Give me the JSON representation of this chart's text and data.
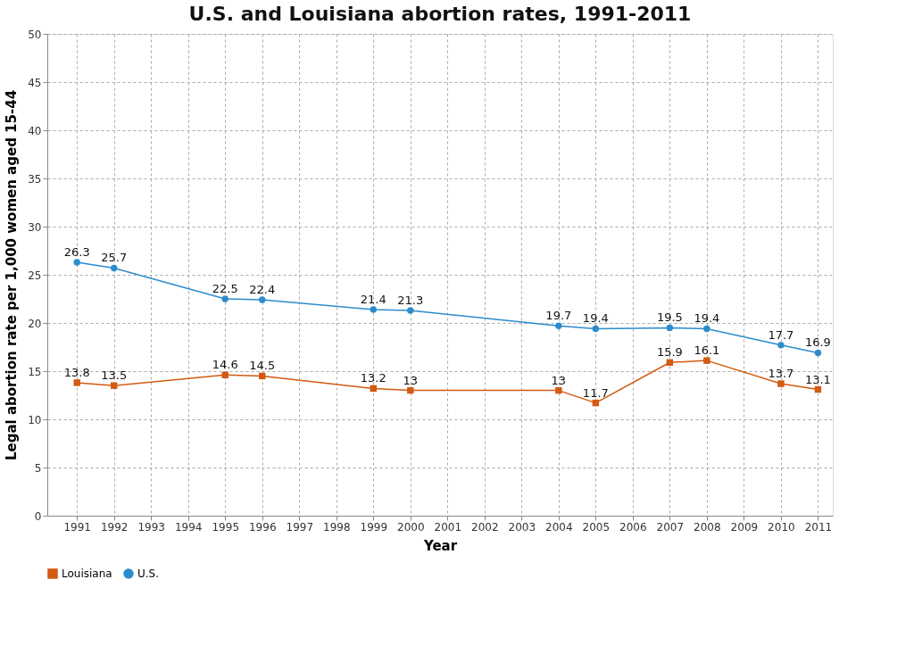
{
  "chart_data": {
    "type": "line",
    "title": "U.S. and Louisiana abortion rates, 1991-2011",
    "xlabel": "Year",
    "ylabel": "Legal abortion rate per 1,000 women aged 15-44",
    "x": [
      1991,
      1992,
      1995,
      1996,
      1999,
      2000,
      2004,
      2005,
      2007,
      2008,
      2010,
      2011
    ],
    "series": [
      {
        "name": "Louisiana",
        "color": "#d35a12",
        "marker": "square",
        "values": [
          13.8,
          13.5,
          14.6,
          14.5,
          13.2,
          13,
          13,
          11.7,
          15.9,
          16.1,
          13.7,
          13.1
        ]
      },
      {
        "name": "U.S.",
        "color": "#2b8ccc",
        "marker": "circle",
        "values": [
          26.3,
          25.7,
          22.5,
          22.4,
          21.4,
          21.3,
          19.7,
          19.4,
          19.5,
          19.4,
          17.7,
          16.9
        ]
      }
    ],
    "xlim": [
      1990.2,
      2011.4
    ],
    "xticks": [
      1991,
      1992,
      1993,
      1994,
      1995,
      1996,
      1997,
      1998,
      1999,
      2000,
      2001,
      2002,
      2003,
      2004,
      2005,
      2006,
      2007,
      2008,
      2009,
      2010,
      2011
    ],
    "ylim": [
      0,
      50
    ],
    "yticks": [
      0,
      5,
      10,
      15,
      20,
      25,
      30,
      35,
      40,
      45,
      50
    ],
    "grid": true,
    "legend": "bottom",
    "data_labels": true,
    "line_style": "solid"
  }
}
